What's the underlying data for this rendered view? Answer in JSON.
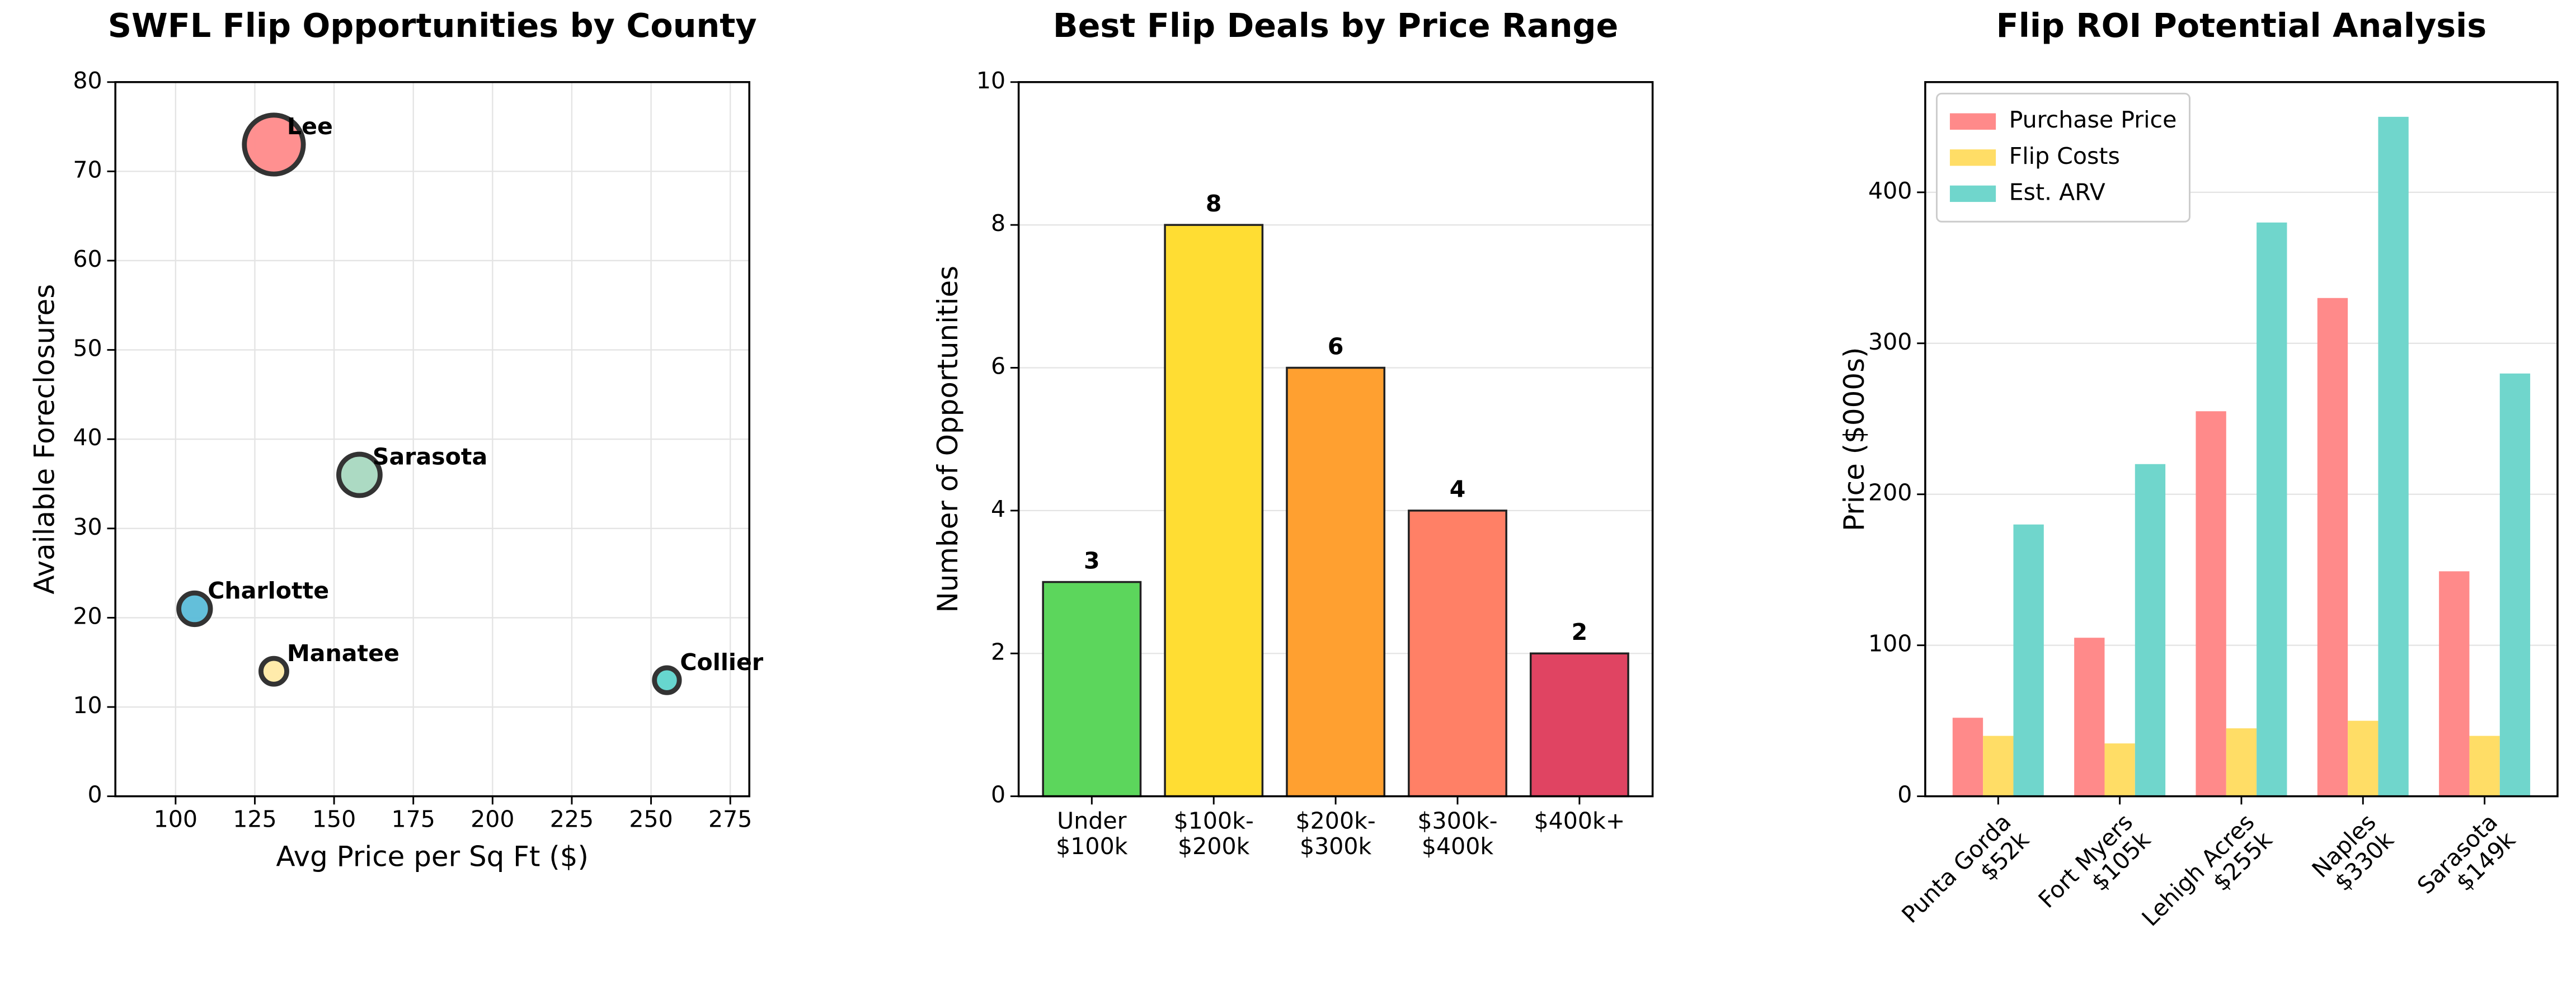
{
  "chart_data": [
    {
      "type": "scatter",
      "title": "SWFL Flip Opportunities by County",
      "x_label": "Avg Price per Sq Ft ($)",
      "y_label": "Available Foreclosures",
      "labels": [
        "Lee",
        "Sarasota",
        "Charlotte",
        "Manatee",
        "Collier"
      ],
      "x": [
        131,
        158,
        106,
        131,
        255
      ],
      "values": [
        73,
        36,
        21,
        14,
        13
      ],
      "colors": [
        "#ff8a8a",
        "#a8d8c0",
        "#5bbcd8",
        "#ffeaa7",
        "#5fd4cc"
      ],
      "xlim": [
        81,
        281
      ],
      "xticks": [
        100,
        125,
        150,
        175,
        200,
        225,
        250,
        275
      ],
      "ylim": [
        0,
        80
      ],
      "yticks": [
        0,
        10,
        20,
        30,
        40,
        50,
        60,
        70,
        80
      ],
      "grid": true
    },
    {
      "type": "bar",
      "title": "Best Flip Deals by Price Range",
      "y_label": "Number of Opportunities",
      "categories": [
        "Under\n$100k",
        "$100k-\n$200k",
        "$200k-\n$300k",
        "$300k-\n$400k",
        "$400k+"
      ],
      "values": [
        3,
        8,
        6,
        4,
        2
      ],
      "colors": [
        "#5cd65c",
        "#ffdd33",
        "#ffa030",
        "#ff8066",
        "#e04462"
      ],
      "ylim": [
        0,
        10
      ],
      "yticks": [
        0,
        2,
        4,
        6,
        8,
        10
      ],
      "grid": true
    },
    {
      "type": "grouped_bar",
      "title": "Flip ROI Potential Analysis",
      "y_label": "Price ($000s)",
      "categories": [
        "Punta Gorda\n$52k",
        "Fort Myers\n$105k",
        "Lehigh Acres\n$255k",
        "Naples\n$330k",
        "Sarasota\n$149k"
      ],
      "series": [
        {
          "name": "Purchase Price",
          "color": "#ff8a8a",
          "values": [
            52,
            105,
            255,
            330,
            149
          ]
        },
        {
          "name": "Flip Costs",
          "color": "#ffdd66",
          "values": [
            40,
            35,
            45,
            50,
            40
          ]
        },
        {
          "name": "Est. ARV",
          "color": "#70d6cc",
          "values": [
            180,
            220,
            380,
            450,
            280
          ]
        }
      ],
      "ylim": [
        0,
        473
      ],
      "yticks": [
        0,
        100,
        200,
        300,
        400
      ],
      "grid": true,
      "legend": "upper-left"
    }
  ]
}
